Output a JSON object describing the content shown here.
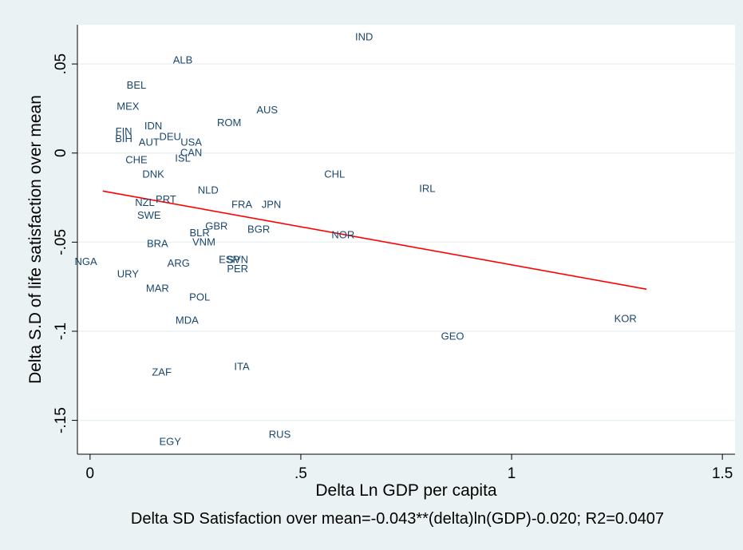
{
  "chart_data": {
    "type": "scatter",
    "xlabel": "Delta Ln GDP per capita",
    "ylabel": "Delta S.D of life satisfaction over mean",
    "note": "Delta SD Satisfaction over mean=-0.043**(delta)ln(GDP)-0.020; R2=0.0407",
    "xlim": [
      -0.03,
      1.53
    ],
    "ylim": [
      -0.169,
      0.072
    ],
    "x_ticks": [
      {
        "value": 0,
        "label": "0"
      },
      {
        "value": 0.5,
        "label": ".5"
      },
      {
        "value": 1,
        "label": "1"
      },
      {
        "value": 1.5,
        "label": "1.5"
      }
    ],
    "y_ticks": [
      {
        "value": 0.05,
        "label": ".05"
      },
      {
        "value": 0,
        "label": "0"
      },
      {
        "value": -0.05,
        "label": "-.05"
      },
      {
        "value": -0.1,
        "label": "-.1"
      },
      {
        "value": -0.15,
        "label": "-.15"
      }
    ],
    "grid": "horizontal",
    "colors": {
      "background": "#eaf2f3",
      "plot": "#ffffff",
      "points": "#1a476f",
      "fit": "#ff0000",
      "grid": "#eaf2f3"
    },
    "points": [
      {
        "label": "IND",
        "x": 0.65,
        "y": 0.065
      },
      {
        "label": "ALB",
        "x": 0.22,
        "y": 0.052
      },
      {
        "label": "BEL",
        "x": 0.11,
        "y": 0.038
      },
      {
        "label": "MEX",
        "x": 0.09,
        "y": 0.026
      },
      {
        "label": "AUS",
        "x": 0.42,
        "y": 0.024
      },
      {
        "label": "ROM",
        "x": 0.33,
        "y": 0.017
      },
      {
        "label": "IDN",
        "x": 0.15,
        "y": 0.015
      },
      {
        "label": "FIN",
        "x": 0.08,
        "y": 0.012
      },
      {
        "label": "DEU",
        "x": 0.19,
        "y": 0.009
      },
      {
        "label": "BIH",
        "x": 0.08,
        "y": 0.008
      },
      {
        "label": "AUT",
        "x": 0.14,
        "y": 0.006
      },
      {
        "label": "USA",
        "x": 0.24,
        "y": 0.006
      },
      {
        "label": "CAN",
        "x": 0.24,
        "y": 0.0
      },
      {
        "label": "ISL",
        "x": 0.22,
        "y": -0.003
      },
      {
        "label": "CHE",
        "x": 0.11,
        "y": -0.004
      },
      {
        "label": "CHL",
        "x": 0.58,
        "y": -0.012
      },
      {
        "label": "DNK",
        "x": 0.15,
        "y": -0.012
      },
      {
        "label": "IRL",
        "x": 0.8,
        "y": -0.02
      },
      {
        "label": "NLD",
        "x": 0.28,
        "y": -0.021
      },
      {
        "label": "PRT",
        "x": 0.18,
        "y": -0.026
      },
      {
        "label": "NZL",
        "x": 0.13,
        "y": -0.028
      },
      {
        "label": "FRA",
        "x": 0.36,
        "y": -0.029
      },
      {
        "label": "JPN",
        "x": 0.43,
        "y": -0.029
      },
      {
        "label": "SWE",
        "x": 0.14,
        "y": -0.035
      },
      {
        "label": "GBR",
        "x": 0.3,
        "y": -0.041
      },
      {
        "label": "BGR",
        "x": 0.4,
        "y": -0.043
      },
      {
        "label": "BLR",
        "x": 0.26,
        "y": -0.045
      },
      {
        "label": "NOR",
        "x": 0.6,
        "y": -0.046
      },
      {
        "label": "BRA",
        "x": 0.16,
        "y": -0.051
      },
      {
        "label": "VNM",
        "x": 0.27,
        "y": -0.05
      },
      {
        "label": "ESP",
        "x": 0.33,
        "y": -0.06
      },
      {
        "label": "SVN",
        "x": 0.35,
        "y": -0.06
      },
      {
        "label": "NGA",
        "x": -0.01,
        "y": -0.061
      },
      {
        "label": "ARG",
        "x": 0.21,
        "y": -0.062
      },
      {
        "label": "PER",
        "x": 0.35,
        "y": -0.065
      },
      {
        "label": "URY",
        "x": 0.09,
        "y": -0.068
      },
      {
        "label": "MAR",
        "x": 0.16,
        "y": -0.076
      },
      {
        "label": "POL",
        "x": 0.26,
        "y": -0.081
      },
      {
        "label": "KOR",
        "x": 1.27,
        "y": -0.093
      },
      {
        "label": "MDA",
        "x": 0.23,
        "y": -0.094
      },
      {
        "label": "GEO",
        "x": 0.86,
        "y": -0.103
      },
      {
        "label": "ITA",
        "x": 0.36,
        "y": -0.12
      },
      {
        "label": "ZAF",
        "x": 0.17,
        "y": -0.123
      },
      {
        "label": "RUS",
        "x": 0.45,
        "y": -0.158
      },
      {
        "label": "EGY",
        "x": 0.19,
        "y": -0.162
      }
    ],
    "fit_line": {
      "x": [
        0.03,
        1.32
      ],
      "y": [
        -0.0213,
        -0.0764
      ]
    }
  }
}
